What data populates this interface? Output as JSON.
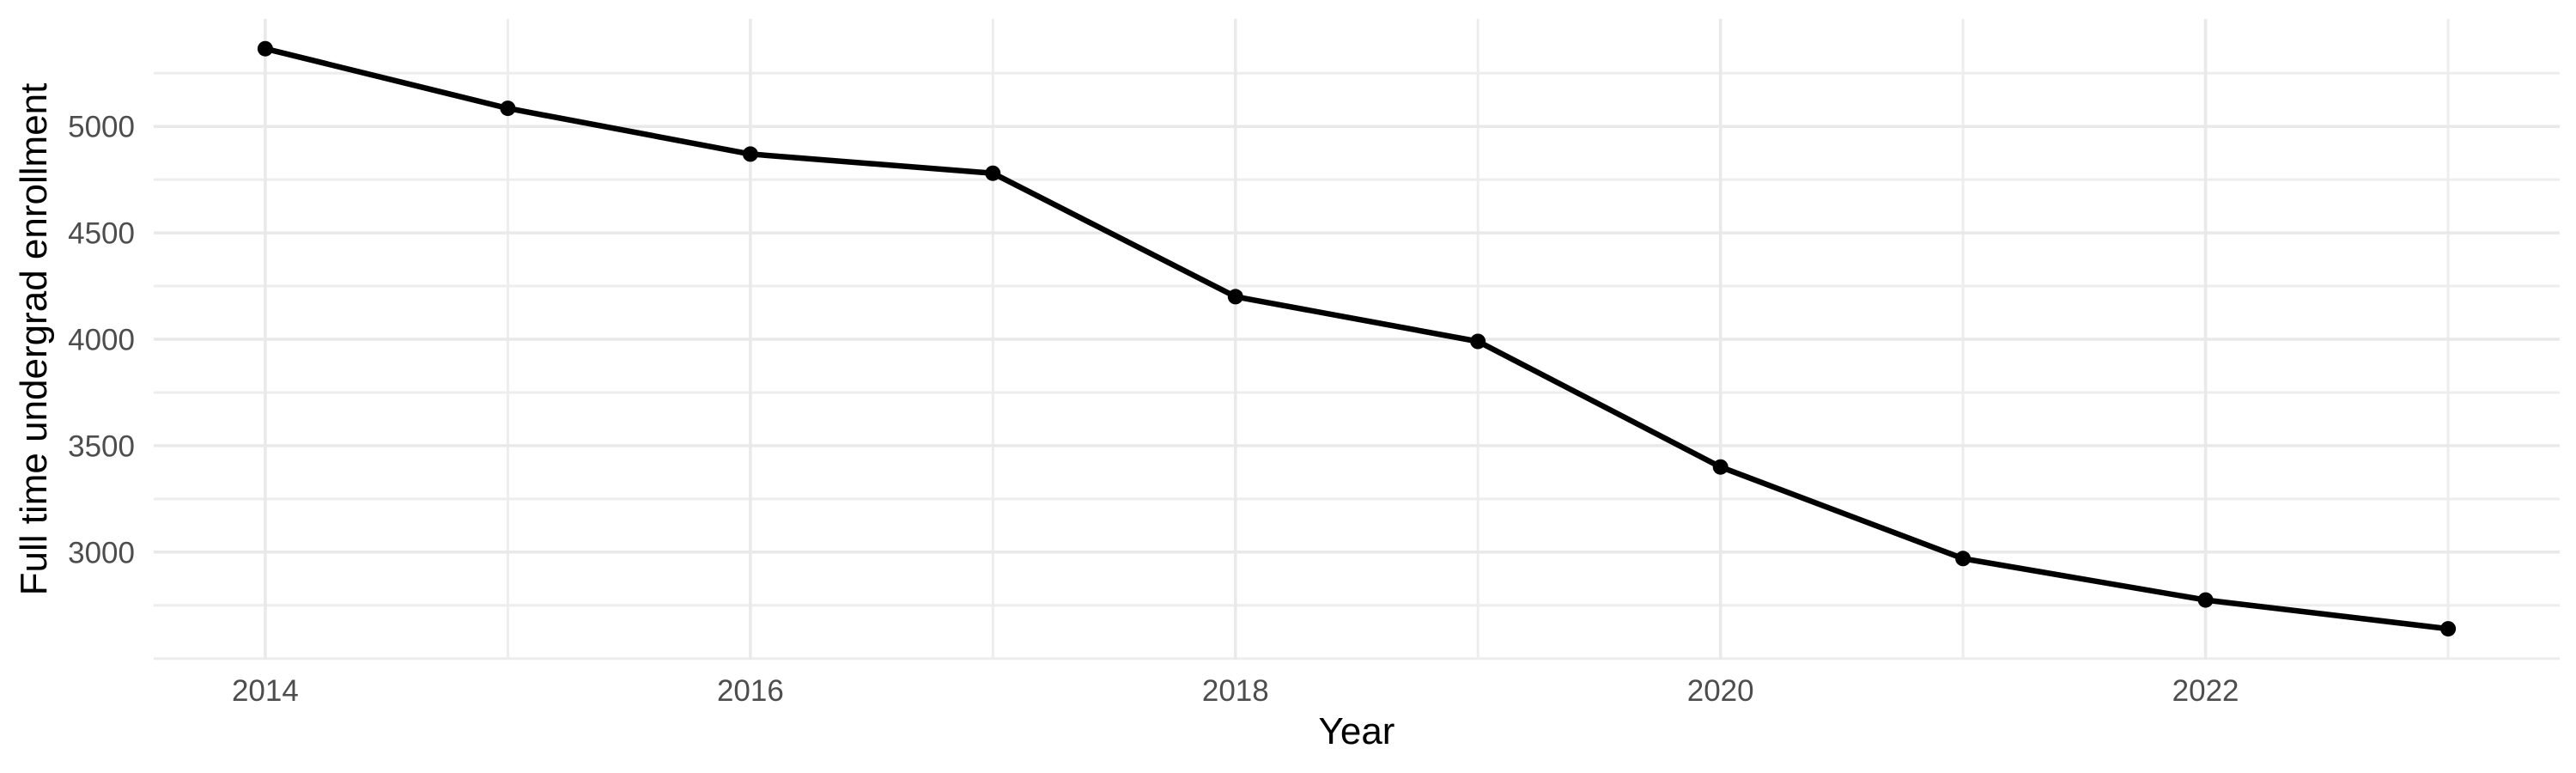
{
  "figure": {
    "background": "#ffffff"
  },
  "chart_data": {
    "type": "line",
    "title": "",
    "xlabel": "Year",
    "ylabel": "Full time undergrad enrollment",
    "series": [
      {
        "name": "Full time undergrad enrollment",
        "x": [
          2014,
          2015,
          2016,
          2017,
          2018,
          2019,
          2020,
          2021,
          2022,
          2023
        ],
        "values": [
          5365,
          5085,
          4870,
          4780,
          4200,
          3990,
          3400,
          2970,
          2775,
          2640
        ]
      }
    ],
    "x_major_ticks": [
      2014,
      2016,
      2018,
      2020,
      2022
    ],
    "x_tick_labels": [
      "2014",
      "2016",
      "2018",
      "2020",
      "2022"
    ],
    "x_minor_gridlines": [
      2015,
      2017,
      2019,
      2021,
      2023
    ],
    "y_major_ticks": [
      5000,
      4500,
      4000,
      3500,
      3000
    ],
    "y_tick_labels": [
      "5000",
      "4500",
      "4000",
      "3500",
      "3000"
    ],
    "y_minor_gridlines": [
      5250,
      4750,
      4250,
      3750,
      3250,
      2750,
      2500
    ],
    "xlim": [
      2013.54,
      2023.46
    ],
    "ylim": [
      2495,
      5505
    ],
    "grid": "major+minor",
    "legend_position": "none",
    "marker": "filled-circle",
    "colors": {
      "line": "#000000",
      "point": "#000000",
      "grid_major": "#e9e9e9",
      "grid_minor": "#ededed",
      "tick_label": "#4d4d4d",
      "axis_title": "#000000",
      "background": "#ffffff"
    }
  }
}
